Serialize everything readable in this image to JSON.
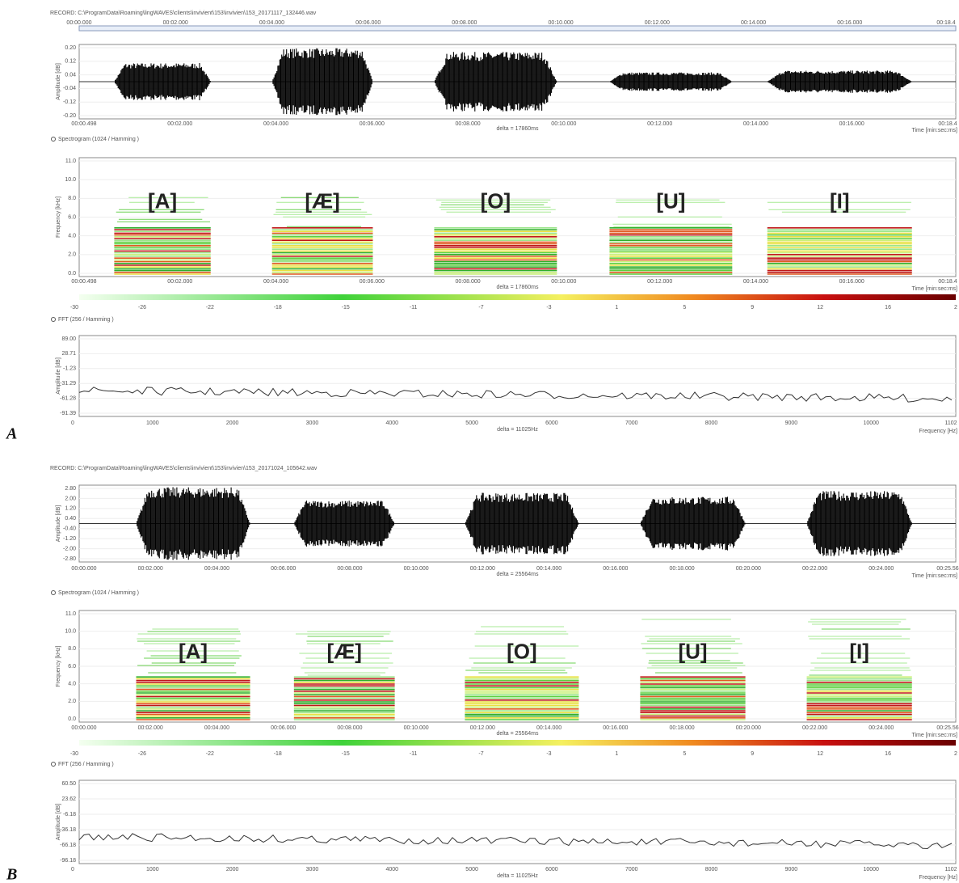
{
  "panels": [
    {
      "label": "A",
      "record": "RECORD: C:\\ProgramData\\Roaming\\lingWAVES\\clients\\invivient\\153\\invivien\\153_20171117_132446.wav",
      "ruler": [
        "00:00.000",
        "00:02.000",
        "00:04.000",
        "00:06.000",
        "00:08.000",
        "00:10.000",
        "00:12.000",
        "00:14.000",
        "00:16.000",
        "00:18.4"
      ],
      "waveform": {
        "y_title": "Amplitude [dB]",
        "yticks": [
          "0.20",
          "0.12",
          "0.04",
          "-0.04",
          "-0.12",
          "-0.20"
        ],
        "xticks": [
          "00:00.498",
          "00:02.000",
          "00:04.000",
          "00:06.000",
          "00:08.000",
          "00:10.000",
          "00:12.000",
          "00:14.000",
          "00:16.000",
          "00:18.4"
        ],
        "delta": "delta = 17860ms",
        "x_title": "Time [min:sec:ms]"
      },
      "spectrogram": {
        "header": "Spectrogram (1024 / Hamming )",
        "y_title": "Frequency [kHz]",
        "yticks": [
          "11.0",
          "10.0",
          "8.0",
          "6.0",
          "4.0",
          "2.0",
          "0.0"
        ],
        "xticks": [
          "00:00.498",
          "00:02.000",
          "00:04.000",
          "00:06.000",
          "00:08.000",
          "00:10.000",
          "00:12.000",
          "00:14.000",
          "00:16.000",
          "00:18.4"
        ],
        "delta": "delta = 17860ms",
        "x_title": "Time [min:sec:ms]",
        "vowels": [
          "[A]",
          "[Æ]",
          "[O]",
          "[U]",
          "[I]"
        ]
      },
      "color_scale": [
        "-30",
        "-26",
        "-22",
        "-18",
        "-15",
        "-11",
        "-7",
        "-3",
        "1",
        "5",
        "9",
        "12",
        "16",
        "2"
      ],
      "fft": {
        "header": "FFT (256 / Hamming )",
        "y_title": "Amplitude [dB]",
        "yticks": [
          "89.00",
          "28.71",
          "-1.23",
          "-31.29",
          "-61.28",
          "-91.39"
        ],
        "xticks": [
          "0",
          "1000",
          "2000",
          "3000",
          "4000",
          "5000",
          "6000",
          "7000",
          "8000",
          "9000",
          "10000",
          "1102"
        ],
        "delta": "delta = 11025Hz",
        "x_title": "Frequency [Hz]"
      }
    },
    {
      "label": "B",
      "record": "RECORD: C:\\ProgramData\\Roaming\\lingWAVES\\clients\\invivient\\153\\invivien\\153_20171024_105642.wav",
      "waveform": {
        "y_title": "Amplitude [dB]",
        "yticks": [
          "2.80",
          "2.00",
          "1.20",
          "0.40",
          "-0.40",
          "-1.20",
          "-2.00",
          "-2.80"
        ],
        "xticks": [
          "00:00.000",
          "00:02.000",
          "00:04.000",
          "00:06.000",
          "00:08.000",
          "00:10.000",
          "00:12.000",
          "00:14.000",
          "00:16.000",
          "00:18.000",
          "00:20.000",
          "00:22.000",
          "00:24.000",
          "00:25.56"
        ],
        "delta": "delta = 25564ms",
        "x_title": "Time [min:sec:ms]"
      },
      "spectrogram": {
        "header": "Spectrogram (1024 / Hamming )",
        "y_title": "Frequency [kHz]",
        "yticks": [
          "11.0",
          "10.0",
          "8.0",
          "6.0",
          "4.0",
          "2.0",
          "0.0"
        ],
        "xticks": [
          "00:00.000",
          "00:02.000",
          "00:04.000",
          "00:06.000",
          "00:08.000",
          "00:10.000",
          "00:12.000",
          "00:14.000",
          "00:16.000",
          "00:18.000",
          "00:20.000",
          "00:22.000",
          "00:24.000",
          "00:25.56"
        ],
        "delta": "delta = 25564ms",
        "x_title": "Time [min:sec:ms]",
        "vowels": [
          "[A]",
          "[Æ]",
          "[O]",
          "[U]",
          "[I]"
        ]
      },
      "color_scale": [
        "-30",
        "-26",
        "-22",
        "-18",
        "-15",
        "-11",
        "-7",
        "-3",
        "1",
        "5",
        "9",
        "12",
        "16",
        "2"
      ],
      "fft": {
        "header": "FFT (256 / Hamming )",
        "y_title": "Amplitude [dB]",
        "yticks": [
          "60.50",
          "23.62",
          "-6.18",
          "-36.18",
          "-66.18",
          "-96.18"
        ],
        "xticks": [
          "0",
          "1000",
          "2000",
          "3000",
          "4000",
          "5000",
          "6000",
          "7000",
          "8000",
          "9000",
          "10000",
          "1102"
        ],
        "delta": "delta = 11025Hz",
        "x_title": "Frequency [Hz]"
      }
    }
  ]
}
